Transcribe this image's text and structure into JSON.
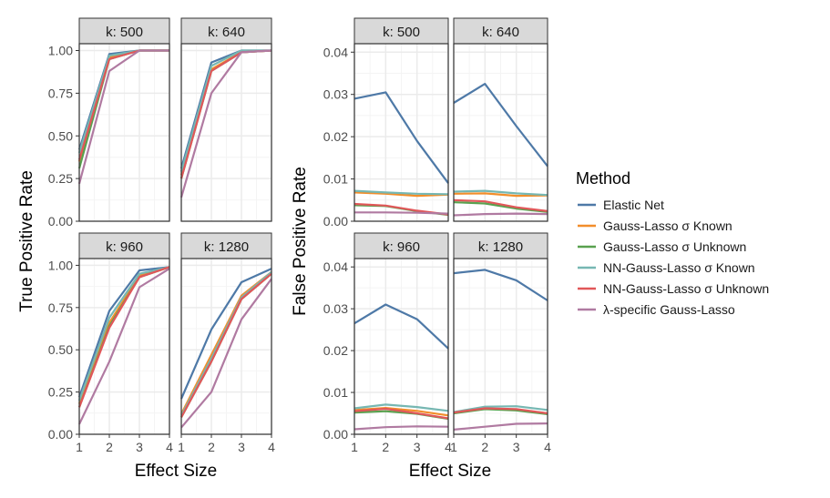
{
  "chart_data": [
    {
      "type": "line",
      "ylabel": "True Positive Rate",
      "xlabel": "Effect Size",
      "x": [
        1,
        2,
        3,
        4
      ],
      "xlim": [
        1,
        4
      ],
      "ylim": [
        0,
        1.04
      ],
      "y_ticks": [
        0.0,
        0.25,
        0.5,
        0.75,
        1.0
      ],
      "y_tick_labels": [
        "0.00",
        "0.25",
        "0.50",
        "0.75",
        "1.00"
      ],
      "x_tick_labels": [
        "1",
        "2",
        "3",
        "4"
      ],
      "grid": true,
      "facets": [
        {
          "label": "k: 500",
          "series": [
            {
              "name": "Elastic Net",
              "values": [
                0.42,
                0.98,
                1.0,
                1.0
              ]
            },
            {
              "name": "Gauss-Lasso σ Known",
              "values": [
                0.35,
                0.96,
                1.0,
                1.0
              ]
            },
            {
              "name": "Gauss-Lasso σ Unknown",
              "values": [
                0.31,
                0.95,
                1.0,
                1.0
              ]
            },
            {
              "name": "NN-Gauss-Lasso σ Known",
              "values": [
                0.4,
                0.97,
                1.0,
                1.0
              ]
            },
            {
              "name": "NN-Gauss-Lasso σ Unknown",
              "values": [
                0.36,
                0.95,
                1.0,
                1.0
              ]
            },
            {
              "name": "λ-specific Gauss-Lasso",
              "values": [
                0.22,
                0.88,
                1.0,
                1.0
              ]
            }
          ]
        },
        {
          "label": "k: 640",
          "series": [
            {
              "name": "Elastic Net",
              "values": [
                0.31,
                0.93,
                1.0,
                1.0
              ]
            },
            {
              "name": "Gauss-Lasso σ Known",
              "values": [
                0.27,
                0.89,
                0.99,
                1.0
              ]
            },
            {
              "name": "Gauss-Lasso σ Unknown",
              "values": [
                0.25,
                0.88,
                0.99,
                1.0
              ]
            },
            {
              "name": "NN-Gauss-Lasso σ Known",
              "values": [
                0.29,
                0.91,
                1.0,
                1.0
              ]
            },
            {
              "name": "NN-Gauss-Lasso σ Unknown",
              "values": [
                0.25,
                0.88,
                0.99,
                1.0
              ]
            },
            {
              "name": "λ-specific Gauss-Lasso",
              "values": [
                0.14,
                0.75,
                0.99,
                1.0
              ]
            }
          ]
        },
        {
          "label": "k: 960",
          "series": [
            {
              "name": "Elastic Net",
              "values": [
                0.22,
                0.73,
                0.97,
                0.99
              ]
            },
            {
              "name": "Gauss-Lasso σ Known",
              "values": [
                0.18,
                0.66,
                0.94,
                0.99
              ]
            },
            {
              "name": "Gauss-Lasso σ Unknown",
              "values": [
                0.16,
                0.64,
                0.93,
                0.99
              ]
            },
            {
              "name": "NN-Gauss-Lasso σ Known",
              "values": [
                0.2,
                0.69,
                0.95,
                0.99
              ]
            },
            {
              "name": "NN-Gauss-Lasso σ Unknown",
              "values": [
                0.16,
                0.63,
                0.93,
                0.99
              ]
            },
            {
              "name": "λ-specific Gauss-Lasso",
              "values": [
                0.06,
                0.43,
                0.87,
                0.98
              ]
            }
          ]
        },
        {
          "label": "k: 1280",
          "series": [
            {
              "name": "Elastic Net",
              "values": [
                0.21,
                0.62,
                0.9,
                0.98
              ]
            },
            {
              "name": "Gauss-Lasso σ Known",
              "values": [
                0.12,
                0.47,
                0.82,
                0.96
              ]
            },
            {
              "name": "Gauss-Lasso σ Unknown",
              "values": [
                0.1,
                0.43,
                0.8,
                0.95
              ]
            },
            {
              "name": "NN-Gauss-Lasso σ Known",
              "values": [
                0.11,
                0.45,
                0.81,
                0.96
              ]
            },
            {
              "name": "NN-Gauss-Lasso σ Unknown",
              "values": [
                0.1,
                0.43,
                0.8,
                0.95
              ]
            },
            {
              "name": "λ-specific Gauss-Lasso",
              "values": [
                0.04,
                0.25,
                0.68,
                0.92
              ]
            }
          ]
        }
      ]
    },
    {
      "type": "line",
      "ylabel": "False Positive Rate",
      "xlabel": "Effect Size",
      "x": [
        1,
        2,
        3,
        4
      ],
      "xlim": [
        1,
        4
      ],
      "ylim": [
        0,
        0.042
      ],
      "y_ticks": [
        0.0,
        0.01,
        0.02,
        0.03,
        0.04
      ],
      "y_tick_labels": [
        "0.00",
        "0.01",
        "0.02",
        "0.03",
        "0.04"
      ],
      "x_tick_labels": [
        "1",
        "2",
        "3",
        "4"
      ],
      "grid": true,
      "facets": [
        {
          "label": "k: 500",
          "series": [
            {
              "name": "Elastic Net",
              "values": [
                0.029,
                0.0305,
                0.019,
                0.009
              ]
            },
            {
              "name": "Gauss-Lasso σ Known",
              "values": [
                0.0068,
                0.0065,
                0.006,
                0.0063
              ]
            },
            {
              "name": "Gauss-Lasso σ Unknown",
              "values": [
                0.0038,
                0.0036,
                0.0024,
                0.0015
              ]
            },
            {
              "name": "NN-Gauss-Lasso σ Known",
              "values": [
                0.0072,
                0.0068,
                0.0065,
                0.0064
              ]
            },
            {
              "name": "NN-Gauss-Lasso σ Unknown",
              "values": [
                0.0041,
                0.0037,
                0.0025,
                0.0016
              ]
            },
            {
              "name": "λ-specific Gauss-Lasso",
              "values": [
                0.0021,
                0.0021,
                0.002,
                0.0018
              ]
            }
          ]
        },
        {
          "label": "k: 640",
          "series": [
            {
              "name": "Elastic Net",
              "values": [
                0.028,
                0.0325,
                0.0225,
                0.013
              ]
            },
            {
              "name": "Gauss-Lasso σ Known",
              "values": [
                0.0065,
                0.0066,
                0.006,
                0.0061
              ]
            },
            {
              "name": "Gauss-Lasso σ Unknown",
              "values": [
                0.0045,
                0.0042,
                0.003,
                0.0022
              ]
            },
            {
              "name": "NN-Gauss-Lasso σ Known",
              "values": [
                0.007,
                0.0072,
                0.0066,
                0.0062
              ]
            },
            {
              "name": "NN-Gauss-Lasso σ Unknown",
              "values": [
                0.005,
                0.0047,
                0.0033,
                0.0024
              ]
            },
            {
              "name": "λ-specific Gauss-Lasso",
              "values": [
                0.0014,
                0.0017,
                0.0018,
                0.0017
              ]
            }
          ]
        },
        {
          "label": "k: 960",
          "series": [
            {
              "name": "Elastic Net",
              "values": [
                0.0265,
                0.031,
                0.0275,
                0.0205
              ]
            },
            {
              "name": "Gauss-Lasso σ Known",
              "values": [
                0.0058,
                0.0063,
                0.0056,
                0.0045
              ]
            },
            {
              "name": "Gauss-Lasso σ Unknown",
              "values": [
                0.0052,
                0.0055,
                0.0049,
                0.0037
              ]
            },
            {
              "name": "NN-Gauss-Lasso σ Known",
              "values": [
                0.0062,
                0.0071,
                0.0065,
                0.0056
              ]
            },
            {
              "name": "NN-Gauss-Lasso σ Unknown",
              "values": [
                0.0055,
                0.0061,
                0.005,
                0.0038
              ]
            },
            {
              "name": "λ-specific Gauss-Lasso",
              "values": [
                0.0012,
                0.0017,
                0.0019,
                0.0018
              ]
            }
          ]
        },
        {
          "label": "k: 1280",
          "series": [
            {
              "name": "Elastic Net",
              "values": [
                0.0385,
                0.0393,
                0.0368,
                0.032
              ]
            },
            {
              "name": "Gauss-Lasso σ Known",
              "values": [
                0.0052,
                0.0062,
                0.0058,
                0.005
              ]
            },
            {
              "name": "Gauss-Lasso σ Unknown",
              "values": [
                0.005,
                0.006,
                0.0057,
                0.0048
              ]
            },
            {
              "name": "NN-Gauss-Lasso σ Known",
              "values": [
                0.0053,
                0.0066,
                0.0067,
                0.0058
              ]
            },
            {
              "name": "NN-Gauss-Lasso σ Unknown",
              "values": [
                0.0052,
                0.0062,
                0.006,
                0.005
              ]
            },
            {
              "name": "λ-specific Gauss-Lasso",
              "values": [
                0.0011,
                0.0018,
                0.0025,
                0.0026
              ]
            }
          ]
        }
      ]
    }
  ],
  "legend": {
    "title": "Method",
    "placement": "right",
    "items": [
      {
        "name": "Elastic Net",
        "color": "#4e79a7"
      },
      {
        "name": "Gauss-Lasso σ Known",
        "color": "#f28e2b"
      },
      {
        "name": "Gauss-Lasso σ Unknown",
        "color": "#59a14f"
      },
      {
        "name": "NN-Gauss-Lasso σ Known",
        "color": "#76b7b2"
      },
      {
        "name": "NN-Gauss-Lasso σ Unknown",
        "color": "#e15759"
      },
      {
        "name": "λ-specific Gauss-Lasso",
        "color": "#b07aa1"
      }
    ]
  },
  "style": {
    "panel_border": "#333333",
    "strip_fill": "#d9d9d9",
    "grid_major": "#ebebeb",
    "grid_minor": "#f4f4f4",
    "axis_text": "#4d4d4d",
    "title_text": "#000000"
  }
}
